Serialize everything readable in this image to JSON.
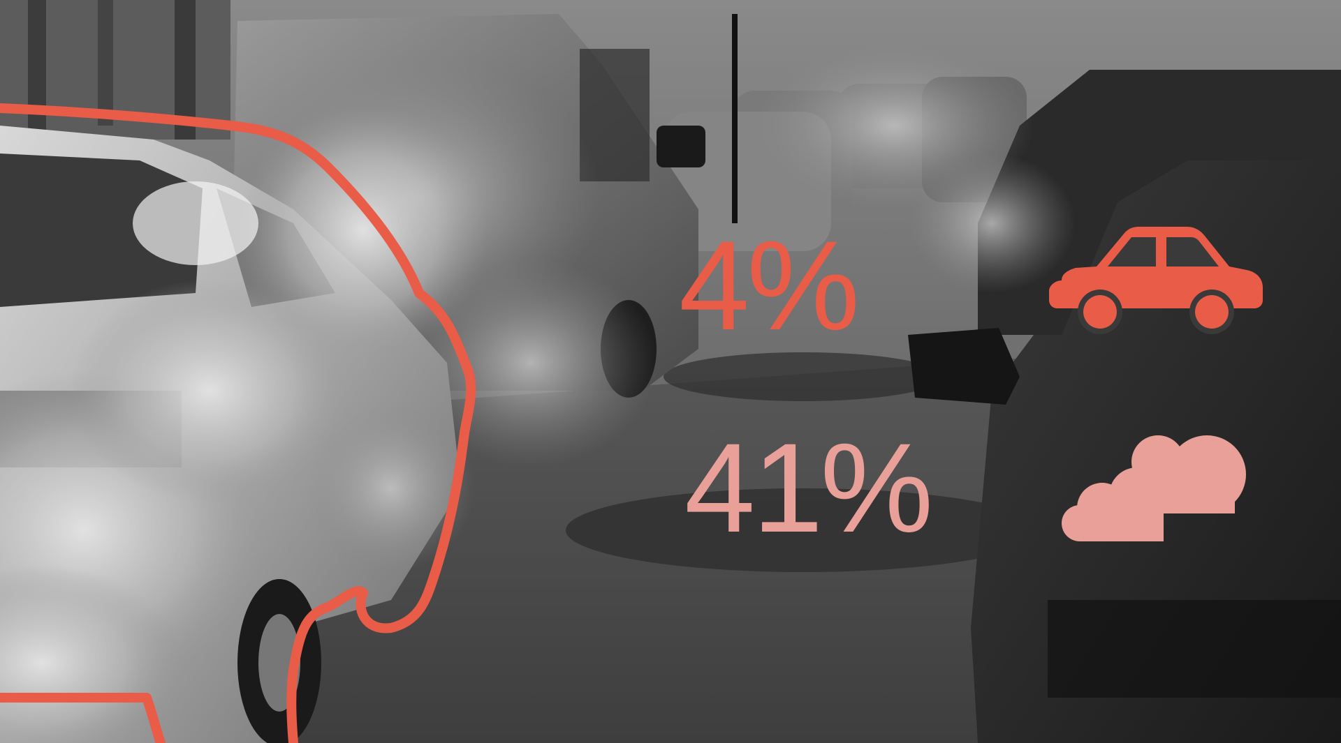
{
  "stats": [
    {
      "value": "4%",
      "icon": "car-icon",
      "color": "#e85c48"
    },
    {
      "value": "41%",
      "icon": "exhaust-cloud-icon",
      "color": "#e8a098"
    }
  ],
  "colors": {
    "accent": "#e85c48",
    "accent_light": "#e8a098",
    "divider": "#111111"
  },
  "background": {
    "style": "grayscale photo",
    "subject": "cars-in-traffic-with-exhaust-smoke"
  }
}
